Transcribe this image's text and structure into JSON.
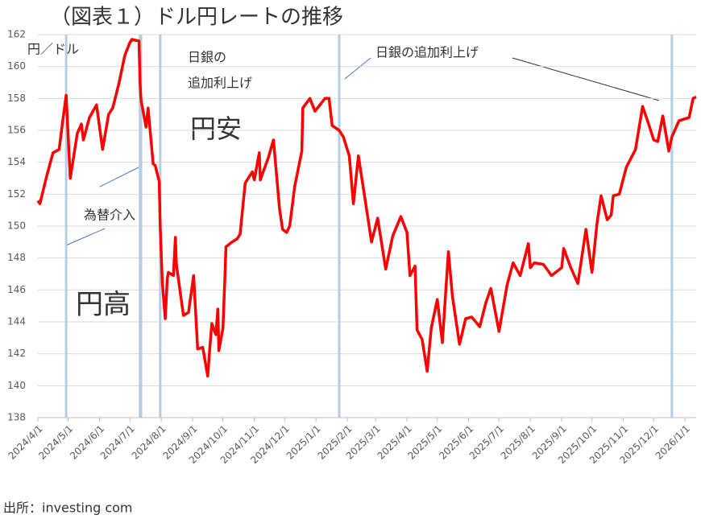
{
  "chart_data": {
    "type": "line",
    "title": "（図表１）ドル円レートの推移",
    "y_axis_label": "円／ドル",
    "source": "出所：investing com",
    "annotations": [
      "日銀の",
      "追加利上げ",
      "円安",
      "為替介入",
      "円高",
      "日銀の追加利上げ"
    ],
    "events": [
      "2024/4/29",
      "2024/7/11",
      "2024/7/12",
      "2024/7/31",
      "2025/1/24",
      "2025/12/19"
    ],
    "event_color": "#b4cde6",
    "grid": true,
    "xlim": [
      "2024/4/1",
      "2026/1/12"
    ],
    "xticks": [
      "2024/4/1",
      "2024/5/1",
      "2024/6/1",
      "2024/7/1",
      "2024/8/1",
      "2024/9/1",
      "2024/10/1",
      "2024/11/1",
      "2024/12/1",
      "2025/1/1",
      "2025/2/1",
      "2025/3/1",
      "2025/4/1",
      "2025/5/1",
      "2025/6/1",
      "2025/7/1",
      "2025/8/1",
      "2025/9/1",
      "2025/10/1",
      "2025/11/1",
      "2025/12/1",
      "2026/1/1"
    ],
    "ylim": [
      138,
      162
    ],
    "yticks": [
      138,
      140,
      142,
      144,
      146,
      148,
      150,
      152,
      154,
      156,
      158,
      160,
      162
    ],
    "x": [
      "2024/4/1",
      "2024/4/3",
      "2024/4/10",
      "2024/4/16",
      "2024/4/22",
      "2024/4/26",
      "2024/4/29",
      "2024/5/3",
      "2024/5/10",
      "2024/5/14",
      "2024/5/16",
      "2024/5/22",
      "2024/5/29",
      "2024/6/4",
      "2024/6/10",
      "2024/6/14",
      "2024/6/20",
      "2024/6/26",
      "2024/7/1",
      "2024/7/3",
      "2024/7/10",
      "2024/7/11",
      "2024/7/12",
      "2024/7/17",
      "2024/7/19",
      "2024/7/24",
      "2024/7/26",
      "2024/7/30",
      "2024/7/31",
      "2024/8/2",
      "2024/8/5",
      "2024/8/7",
      "2024/8/8",
      "2024/8/13",
      "2024/8/15",
      "2024/8/16",
      "2024/8/23",
      "2024/8/28",
      "2024/9/2",
      "2024/9/6",
      "2024/9/11",
      "2024/9/16",
      "2024/9/18",
      "2024/9/20",
      "2024/9/24",
      "2024/9/26",
      "2024/9/27",
      "2024/10/1",
      "2024/10/3",
      "2024/10/4",
      "2024/10/10",
      "2024/10/15",
      "2024/10/18",
      "2024/10/23",
      "2024/10/30",
      "2024/11/1",
      "2024/11/6",
      "2024/11/7",
      "2024/11/15",
      "2024/11/20",
      "2024/11/26",
      "2024/11/29",
      "2024/12/3",
      "2024/12/6",
      "2024/12/11",
      "2024/12/18",
      "2024/12/19",
      "2024/12/26",
      "2024/12/31",
      "2025/1/10",
      "2025/1/14",
      "2025/1/17",
      "2025/1/24",
      "2025/1/28",
      "2025/2/3",
      "2025/2/7",
      "2025/2/12",
      "2025/2/18",
      "2025/2/25",
      "2025/3/3",
      "2025/3/11",
      "2025/3/18",
      "2025/3/26",
      "2025/4/1",
      "2025/4/4",
      "2025/4/9",
      "2025/4/11",
      "2025/4/16",
      "2025/4/21",
      "2025/4/25",
      "2025/5/1",
      "2025/5/6",
      "2025/5/12",
      "2025/5/16",
      "2025/5/23",
      "2025/5/29",
      "2025/6/4",
      "2025/6/12",
      "2025/6/18",
      "2025/6/23",
      "2025/7/1",
      "2025/7/9",
      "2025/7/15",
      "2025/7/22",
      "2025/7/30",
      "2025/8/1",
      "2025/8/5",
      "2025/8/14",
      "2025/8/22",
      "2025/9/1",
      "2025/9/3",
      "2025/9/10",
      "2025/9/17",
      "2025/9/25",
      "2025/10/1",
      "2025/10/6",
      "2025/10/10",
      "2025/10/16",
      "2025/10/20",
      "2025/10/22",
      "2025/10/28",
      "2025/11/4",
      "2025/11/13",
      "2025/11/20",
      "2025/11/26",
      "2025/12/1",
      "2025/12/5",
      "2025/12/10",
      "2025/12/16",
      "2025/12/19",
      "2025/12/26",
      "2026/1/5",
      "2026/1/9",
      "2026/1/12"
    ],
    "series": [
      {
        "name": "ドル円",
        "color": "#ff0000",
        "values": [
          151.6,
          151.4,
          153.2,
          154.6,
          154.8,
          156.8,
          158.2,
          153.0,
          155.8,
          156.4,
          155.4,
          156.8,
          157.6,
          154.8,
          157.0,
          157.4,
          158.9,
          160.7,
          161.5,
          161.7,
          161.6,
          159.0,
          157.9,
          156.2,
          157.4,
          153.9,
          153.8,
          152.8,
          149.9,
          146.5,
          144.2,
          146.7,
          147.1,
          146.9,
          149.3,
          147.6,
          144.4,
          144.6,
          146.9,
          142.3,
          142.4,
          140.6,
          142.3,
          143.9,
          143.2,
          144.8,
          142.2,
          143.6,
          146.9,
          148.7,
          149.0,
          149.2,
          149.5,
          152.7,
          153.4,
          152.9,
          154.6,
          152.9,
          154.3,
          155.4,
          151.1,
          149.8,
          149.6,
          150.0,
          152.5,
          154.7,
          157.4,
          158.0,
          157.2,
          158.0,
          158.0,
          156.3,
          156.0,
          155.6,
          154.4,
          151.4,
          154.4,
          151.9,
          149.0,
          150.5,
          147.3,
          149.4,
          150.6,
          149.6,
          146.9,
          147.5,
          143.5,
          142.9,
          140.9,
          143.6,
          145.4,
          142.7,
          148.4,
          145.6,
          142.6,
          144.2,
          144.3,
          143.7,
          145.2,
          146.1,
          143.4,
          146.3,
          147.7,
          146.9,
          148.9,
          147.4,
          147.7,
          147.6,
          146.9,
          147.4,
          148.6,
          147.4,
          146.4,
          149.8,
          147.1,
          150.2,
          151.9,
          150.4,
          150.7,
          151.9,
          152.0,
          153.7,
          154.8,
          157.5,
          156.4,
          155.4,
          155.3,
          156.9,
          154.7,
          155.6,
          156.6,
          156.8,
          158.0,
          158.1
        ]
      }
    ]
  }
}
